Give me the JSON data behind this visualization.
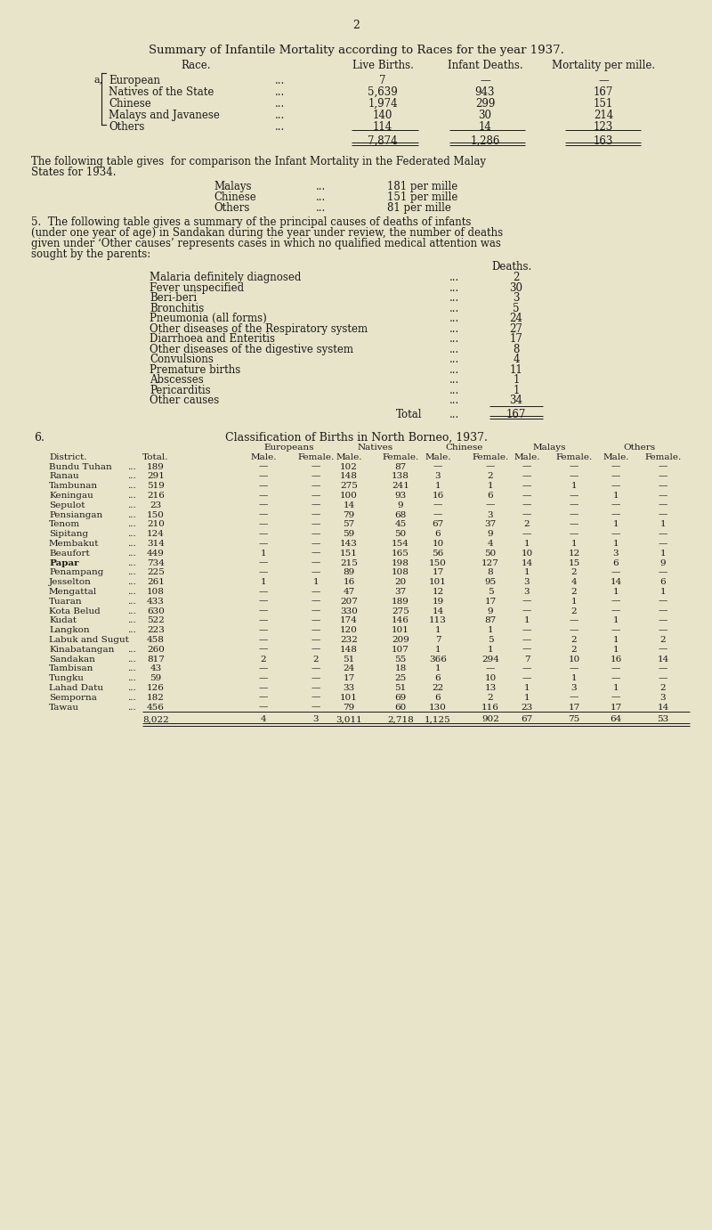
{
  "bg_color": "#e8e4c9",
  "page_number": "2",
  "section1_title": "Summary of Infantile Mortality according to Races for the year 1937.",
  "races": [
    "European",
    "Natives of the State",
    "Chinese",
    "Malays and Javanese",
    "Others"
  ],
  "live_births": [
    "7",
    "5,639",
    "1,974",
    "140",
    "114"
  ],
  "infant_deaths": [
    "—",
    "943",
    "299",
    "30",
    "14"
  ],
  "mortality": [
    "—",
    "167",
    "151",
    "214",
    "123"
  ],
  "total_births": "7,874",
  "total_deaths": "1,286",
  "total_mortality": "163",
  "comparison_races": [
    "Malays",
    "Chinese",
    "Others"
  ],
  "comparison_vals": [
    "181 per mille",
    "151 per mille",
    "81 per mille"
  ],
  "causes": [
    [
      "Malaria definitely diagnosed",
      "2"
    ],
    [
      "Fever unspecified",
      "30"
    ],
    [
      "Beri-beri",
      "3"
    ],
    [
      "Bronchitis",
      "5"
    ],
    [
      "Pneumonia (all forms)",
      "24"
    ],
    [
      "Other diseases of the Respiratory system",
      "27"
    ],
    [
      "Diarrhoea and Enteritis",
      "17"
    ],
    [
      "Other diseases of the digestive system",
      "8"
    ],
    [
      "Convulsions",
      "4"
    ],
    [
      "Premature births",
      "11"
    ],
    [
      "Abscesses",
      "1"
    ],
    [
      "Pericarditis",
      "1"
    ],
    [
      "Other causes",
      "34"
    ]
  ],
  "districts": [
    [
      "Bundu Tuhan",
      "189",
      "—",
      "—",
      "102",
      "87",
      "—",
      "—",
      "—",
      "—",
      "—",
      "—"
    ],
    [
      "Ranau",
      "291",
      "—",
      "—",
      "148",
      "138",
      "3",
      "2",
      "—",
      "—",
      "—",
      "—"
    ],
    [
      "Tambunan",
      "519",
      "—",
      "—",
      "275",
      "241",
      "1",
      "1",
      "—",
      "1",
      "—",
      "—"
    ],
    [
      "Keningau",
      "216",
      "—",
      "—",
      "100",
      "93",
      "16",
      "6",
      "—",
      "—",
      "1",
      "—"
    ],
    [
      "Sepulot",
      "23",
      "—",
      "—",
      "14",
      "9",
      "—",
      "—",
      "—",
      "—",
      "—",
      "—"
    ],
    [
      "Pensiangan",
      "150",
      "—",
      "—",
      "79",
      "68",
      "—",
      "3",
      "—",
      "—",
      "—",
      "—"
    ],
    [
      "Tenom",
      "210",
      "—",
      "—",
      "57",
      "45",
      "67",
      "37",
      "2",
      "—",
      "1",
      "1"
    ],
    [
      "Sipitang",
      "124",
      "—",
      "—",
      "59",
      "50",
      "6",
      "9",
      "—",
      "—",
      "—",
      "—"
    ],
    [
      "Membakut",
      "314",
      "—",
      "—",
      "143",
      "154",
      "10",
      "4",
      "1",
      "1",
      "1",
      "—"
    ],
    [
      "Beaufort",
      "449",
      "1",
      "—",
      "151",
      "165",
      "56",
      "50",
      "10",
      "12",
      "3",
      "1"
    ],
    [
      "Papar",
      "734",
      "—",
      "—",
      "215",
      "198",
      "150",
      "127",
      "14",
      "15",
      "6",
      "9"
    ],
    [
      "Penampang",
      "225",
      "—",
      "—",
      "89",
      "108",
      "17",
      "8",
      "1",
      "2",
      "—",
      "—"
    ],
    [
      "Jesselton",
      "261",
      "1",
      "1",
      "16",
      "20",
      "101",
      "95",
      "3",
      "4",
      "14",
      "6"
    ],
    [
      "Mengattal",
      "108",
      "—",
      "—",
      "47",
      "37",
      "12",
      "5",
      "3",
      "2",
      "1",
      "1"
    ],
    [
      "Tuaran",
      "433",
      "—",
      "—",
      "207",
      "189",
      "19",
      "17",
      "—",
      "1",
      "—",
      "—"
    ],
    [
      "Kota Belud",
      "630",
      "—",
      "—",
      "330",
      "275",
      "14",
      "9",
      "—",
      "2",
      "—",
      "—"
    ],
    [
      "Kudat",
      "522",
      "—",
      "—",
      "174",
      "146",
      "113",
      "87",
      "1",
      "—",
      "1",
      "—"
    ],
    [
      "Langkon",
      "223",
      "—",
      "—",
      "120",
      "101",
      "1",
      "1",
      "—",
      "—",
      "—",
      "—"
    ],
    [
      "Labuk and Sugut",
      "458",
      "—",
      "—",
      "232",
      "209",
      "7",
      "5",
      "—",
      "2",
      "1",
      "2"
    ],
    [
      "Kinabatangan",
      "260",
      "—",
      "—",
      "148",
      "107",
      "1",
      "1",
      "—",
      "2",
      "1",
      "—"
    ],
    [
      "Sandakan",
      "817",
      "2",
      "2",
      "51",
      "55",
      "366",
      "294",
      "7",
      "10",
      "16",
      "14"
    ],
    [
      "Tambisan",
      "43",
      "—",
      "—",
      "24",
      "18",
      "1",
      "—",
      "—",
      "—",
      "—",
      "—"
    ],
    [
      "Tungku",
      "59",
      "—",
      "—",
      "17",
      "25",
      "6",
      "10",
      "—",
      "1",
      "—",
      "—"
    ],
    [
      "Lahad Datu",
      "126",
      "—",
      "—",
      "33",
      "51",
      "22",
      "13",
      "1",
      "3",
      "1",
      "2"
    ],
    [
      "Semporna",
      "182",
      "—",
      "—",
      "101",
      "69",
      "6",
      "2",
      "1",
      "—",
      "—",
      "3"
    ],
    [
      "Tawau",
      "456",
      "—",
      "—",
      "79",
      "60",
      "130",
      "116",
      "23",
      "17",
      "17",
      "14"
    ]
  ],
  "dist_totals": [
    "8,022",
    "4",
    "3",
    "3,011",
    "2,718",
    "1,125",
    "902",
    "67",
    "75",
    "64",
    "53"
  ]
}
